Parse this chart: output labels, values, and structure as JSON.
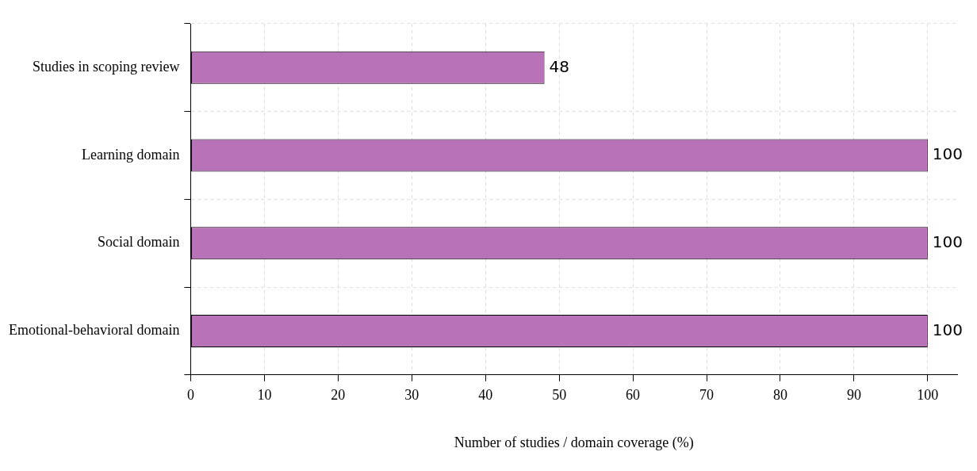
{
  "chart_data": {
    "type": "bar",
    "orientation": "horizontal",
    "xlabel": "Number of studies / domain coverage (%)",
    "categories": [
      "Studies in scoping review",
      "Learning domain",
      "Social domain",
      "Emotional-behavioral domain"
    ],
    "values": [
      48,
      100,
      100,
      100
    ],
    "color": "#b873b8",
    "xlim": [
      0,
      104
    ],
    "xticks": [
      0,
      10,
      20,
      30,
      40,
      50,
      60,
      70,
      80,
      90,
      100
    ],
    "grid": true,
    "data_labels": true
  }
}
